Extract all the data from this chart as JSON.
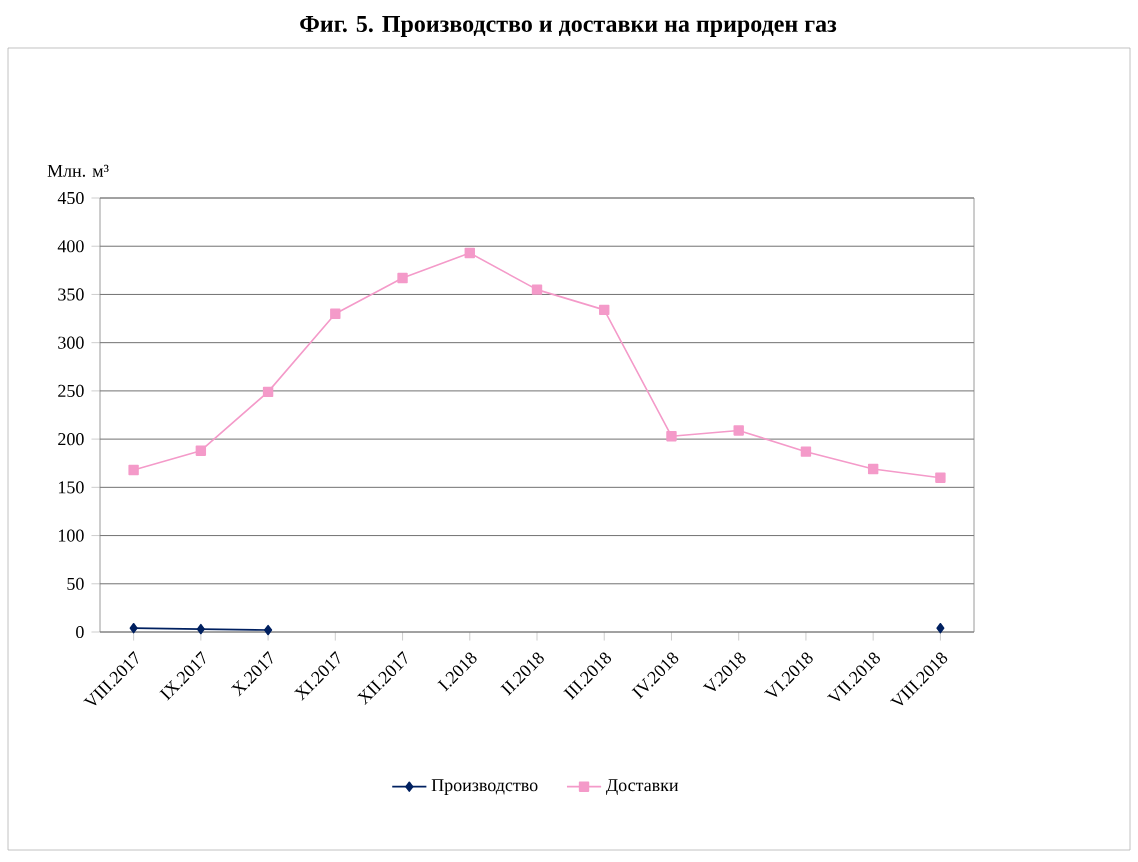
{
  "chart_data": {
    "type": "line",
    "title": "Фиг. 5. Производство и доставки на природен газ",
    "ylabel": "Млн. м³",
    "categories": [
      "VIII.2017",
      "IX.2017",
      "X.2017",
      "XI.2017",
      "XII.2017",
      "I.2018",
      "II.2018",
      "III.2018",
      "IV.2018",
      "V.2018",
      "VI.2018",
      "VII.2018",
      "VIII.2018"
    ],
    "series": [
      {
        "name": "Производство",
        "color": "#002060",
        "marker": "diamond",
        "values": [
          4,
          3,
          2,
          null,
          null,
          null,
          null,
          null,
          null,
          null,
          null,
          null,
          4
        ]
      },
      {
        "name": "Доставки",
        "color": "#f49ac9",
        "marker": "square",
        "values": [
          168,
          188,
          249,
          330,
          367,
          393,
          355,
          334,
          203,
          209,
          187,
          169,
          160
        ]
      }
    ],
    "ylim": [
      0,
      450
    ],
    "yticks": [
      0,
      50,
      100,
      150,
      200,
      250,
      300,
      350,
      400,
      450
    ],
    "grid": "y",
    "legend": "bottom",
    "line_style": "solid"
  }
}
